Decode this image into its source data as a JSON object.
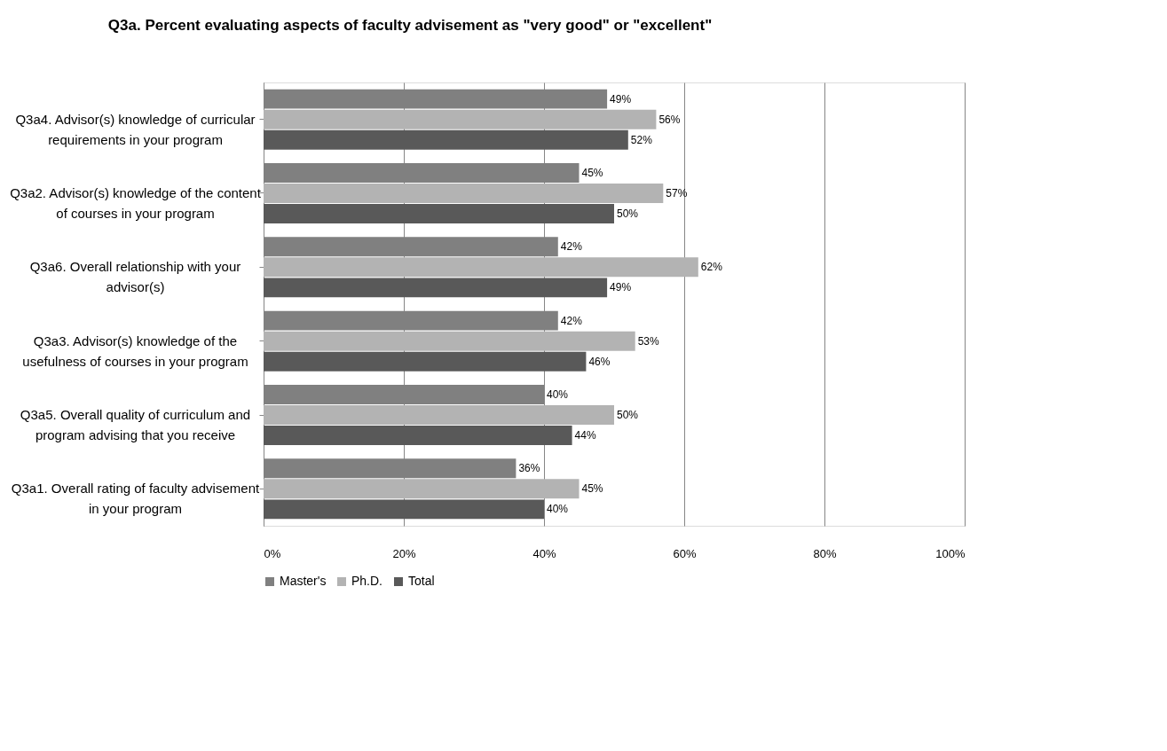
{
  "chart_data": {
    "type": "bar",
    "orientation": "horizontal",
    "title": "Q3a. Percent evaluating aspects of faculty advisement as \"very good\" or \"excellent\"",
    "categories": [
      "Q3a4. Advisor(s) knowledge of curricular requirements in your program",
      "Q3a2. Advisor(s) knowledge of the content of courses in your program",
      "Q3a6. Overall relationship with your advisor(s)",
      "Q3a3. Advisor(s) knowledge of the usefulness of courses in your program",
      "Q3a5. Overall quality of curriculum and program advising that you receive",
      "Q3a1. Overall rating of faculty advisement in your program"
    ],
    "series": [
      {
        "name": "Master's",
        "color": "#808080",
        "values": [
          49,
          45,
          42,
          42,
          40,
          36
        ],
        "value_labels": [
          "49%",
          "45%",
          "42%",
          "42%",
          "40%",
          "36%"
        ]
      },
      {
        "name": "Ph.D.",
        "color": "#b3b3b3",
        "values": [
          56,
          57,
          62,
          53,
          50,
          45
        ],
        "value_labels": [
          "56%",
          "57%",
          "62%",
          "53%",
          "50%",
          "45%"
        ]
      },
      {
        "name": "Total",
        "color": "#595959",
        "values": [
          52,
          50,
          49,
          46,
          44,
          40
        ],
        "value_labels": [
          "52%",
          "50%",
          "49%",
          "46%",
          "44%",
          "40%"
        ]
      }
    ],
    "xlim": [
      0,
      100
    ],
    "xticks": [
      {
        "value": 0,
        "label": "0%"
      },
      {
        "value": 20,
        "label": "20%"
      },
      {
        "value": 40,
        "label": "40%"
      },
      {
        "value": 60,
        "label": "60%"
      },
      {
        "value": 80,
        "label": "80%"
      },
      {
        "value": 100,
        "label": "100%"
      }
    ],
    "grid": "x",
    "legend": "bottom"
  }
}
